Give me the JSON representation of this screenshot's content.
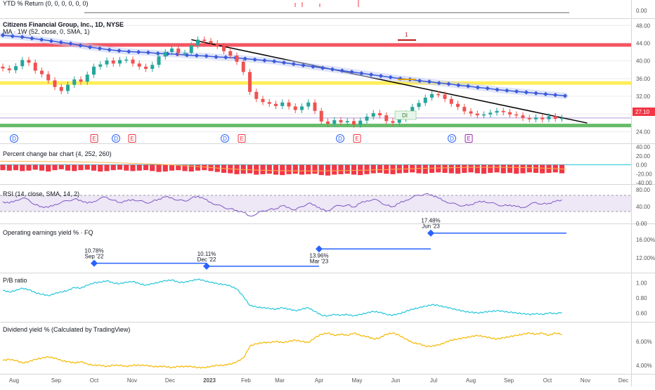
{
  "colors": {
    "candle_up": "#26a69a",
    "candle_down": "#ef5350",
    "ma": "#3b5bdb",
    "ma_glow": "#c5cdf6",
    "trendline": "#000000",
    "band_red": "#f23645",
    "band_yellow": "#ffeb3b",
    "band_green": "#4caf50",
    "pct_bar": "#f23645",
    "pct_line": "#ffb74d",
    "rsi": "#7e57c2",
    "earnings": "#2962ff",
    "pb": "#26c6da",
    "div": "#f5b800",
    "event_dividend": "#2962ff",
    "event_earnings": "#f23645",
    "event_earnings_future": "#9c27b0",
    "axis_text": "#555555",
    "grid": "#ececec",
    "separator": "#d6d6d6",
    "last_price_badge": "#f23645"
  },
  "top_panel": {
    "title": "YTD % Return (0, 0, 0, 0, 0, 0)",
    "axis_label": "0.00"
  },
  "main_panel": {
    "title": "Citizens Financial Group, Inc., 1D, NYSE",
    "indicator": "MA · 1W (52, close, 0, SMA, 1)",
    "price_axis": [
      "48.00",
      "44.00",
      "40.00",
      "36.00",
      "32.00",
      "28.00",
      "24.00"
    ],
    "last_price": "27.10",
    "band_marker_label": "1",
    "price_bubble": "DI",
    "events": [
      {
        "type": "dividend",
        "label": "D"
      },
      {
        "type": "earnings",
        "label": "E"
      },
      {
        "type": "dividend",
        "label": "D"
      },
      {
        "type": "earnings",
        "label": "E"
      },
      {
        "type": "dividend",
        "label": "D"
      },
      {
        "type": "earnings",
        "label": "E"
      },
      {
        "type": "dividend",
        "label": "D"
      },
      {
        "type": "earnings",
        "label": "E"
      },
      {
        "type": "dividend",
        "label": "D"
      },
      {
        "type": "earnings_future",
        "label": "E"
      }
    ]
  },
  "pct_panel": {
    "title": "Percent change bar chart (4, 252, 260)",
    "axis": [
      "40.00",
      "20.00",
      "0.00",
      "-20.00",
      "-40.00"
    ]
  },
  "rsi_panel": {
    "title": "RSI (14, close, SMA, 14, 2)",
    "axis": [
      "80.00",
      "40.00",
      "0.00"
    ]
  },
  "earnings_panel": {
    "title": "Operating earnings yield % · FQ",
    "axis": [
      "16.00%",
      "12.00%"
    ],
    "labels": [
      {
        "value": "10.78%",
        "period": "Sep '22"
      },
      {
        "value": "10.11%",
        "period": "Dec '22"
      },
      {
        "value": "13.96%",
        "period": "Mar '23"
      },
      {
        "value": "17.48%",
        "period": "Jun '23"
      }
    ]
  },
  "pb_panel": {
    "title": "P/B ratio",
    "axis": [
      "1.00",
      "0.80",
      "0.60"
    ]
  },
  "div_panel": {
    "title": "Dividend yield % (Calculated by TradingView)",
    "axis": [
      "6.00%",
      "4.00%"
    ]
  },
  "time_axis": [
    "Aug",
    "Sep",
    "Oct",
    "Nov",
    "Dec",
    "2023",
    "Feb",
    "Mar",
    "Apr",
    "May",
    "Jun",
    "Jul",
    "Aug",
    "Sep",
    "Oct",
    "Nov",
    "Dec"
  ],
  "chart_data": [
    {
      "type": "line",
      "title": "Citizens Financial Group, Inc., 1D, NYSE",
      "series": [
        {
          "name": "Citizens Financial Group, Inc., 1D, NYSE",
          "values": [
            38.3,
            37.9,
            38.8,
            40.2,
            39.6,
            37.8,
            37.0,
            35.6,
            34.1,
            33.2,
            34.6,
            35.8,
            35.3,
            36.9,
            38.7,
            39.2,
            40.1,
            39.4,
            40.2,
            40.3,
            39.4,
            38.7,
            38.2,
            39.1,
            41.0,
            42.0,
            42.8,
            41.8,
            41.8,
            43.5,
            44.8,
            44.5,
            44.0,
            43.4,
            42.2,
            41.2,
            39.8,
            37.5,
            33.0,
            31.4,
            30.7,
            30.3,
            29.8,
            30.6,
            29.7,
            28.9,
            29.7,
            30.6,
            28.7,
            26.3,
            25.8,
            26.6,
            26.1,
            26.4,
            25.6,
            26.5,
            27.4,
            28.2,
            27.7,
            26.4,
            26.0,
            26.9,
            28.1,
            29.6,
            30.5,
            31.7,
            32.5,
            32.4,
            31.4,
            30.3,
            29.6,
            28.6,
            28.1,
            27.7,
            27.9,
            28.3,
            28.7,
            28.4,
            27.9,
            27.7,
            27.1,
            26.8,
            27.2,
            26.8,
            27.5,
            26.9,
            27.1
          ]
        },
        {
          "name": "MA · 1W (52, close, 0, SMA, 1)",
          "values": [
            45.8,
            45.6,
            45.4,
            45.1,
            44.8,
            44.5,
            44.2,
            43.9,
            43.5,
            43.1,
            42.8,
            42.5,
            42.3,
            42.1,
            42.0,
            41.9,
            41.7,
            41.6,
            41.5,
            41.3,
            41.2,
            41.1,
            40.9,
            40.8,
            40.7,
            40.5,
            40.3,
            40.1,
            39.9,
            39.6,
            39.3,
            39.0,
            38.7,
            38.4,
            38.1,
            37.8,
            37.5,
            37.2,
            36.9,
            36.6,
            36.3,
            36.0,
            35.8,
            35.5,
            35.3,
            35.0,
            34.8,
            34.5,
            34.3,
            34.0,
            33.8,
            33.5,
            33.3,
            33.1,
            32.9,
            32.7,
            32.5,
            32.3,
            32.1
          ]
        }
      ],
      "horizontal_levels": [
        {
          "color": "red",
          "value": 43.6
        },
        {
          "color": "yellow",
          "value": 35.0
        },
        {
          "color": "green",
          "value": 25.4
        }
      ],
      "trendline": {
        "from": [
          29,
          44.8
        ],
        "to": [
          86,
          25.8
        ]
      },
      "ylim": [
        22,
        49
      ]
    },
    {
      "type": "bar",
      "title": "Percent change bar chart (4, 252, 260)",
      "values": [
        -12,
        -13,
        -12,
        -14,
        -13,
        -11,
        -13,
        -15,
        -12,
        -10,
        -13,
        -14,
        -12,
        -11,
        -13,
        -15,
        -14,
        -12,
        -11,
        -13,
        -14,
        -13,
        -12,
        -14,
        -16,
        -15,
        -13,
        -12,
        -14,
        -15,
        -13,
        -12,
        -14,
        -16,
        -18,
        -19,
        -21,
        -20,
        -19,
        -22,
        -21,
        -20,
        -22,
        -23,
        -21,
        -20,
        -22,
        -21,
        -20,
        -23,
        -24,
        -22,
        -21,
        -20,
        -22,
        -23,
        -21,
        -19,
        -18,
        -20,
        -21,
        -19,
        -18,
        -17,
        -19,
        -20,
        -18,
        -17,
        -18,
        -19,
        -20,
        -18,
        -17,
        -19,
        -20,
        -18,
        -17,
        -19,
        -18,
        -20,
        -19,
        -17,
        -18,
        -19,
        -18,
        -17,
        -19
      ],
      "ylim": [
        -40,
        40
      ]
    },
    {
      "type": "line",
      "title": "RSI (14, close, SMA, 14, 2)",
      "series": [
        {
          "name": "RSI (14, close, SMA, 14, 2)",
          "values": [
            52,
            48,
            55,
            60,
            56,
            44,
            40,
            38,
            45,
            50,
            54,
            58,
            55,
            48,
            52,
            60,
            62,
            55,
            50,
            53,
            57,
            54,
            49,
            52,
            58,
            63,
            61,
            55,
            53,
            60,
            65,
            58,
            50,
            44,
            38,
            35,
            31,
            26,
            18,
            22,
            30,
            33,
            35,
            42,
            38,
            32,
            40,
            48,
            44,
            33,
            30,
            40,
            42,
            44,
            39,
            48,
            54,
            57,
            52,
            43,
            40,
            48,
            55,
            62,
            67,
            70,
            68,
            60,
            53,
            48,
            44,
            42,
            45,
            50,
            53,
            49,
            45,
            42,
            44,
            40,
            38,
            44,
            50,
            46,
            48,
            52,
            56
          ]
        }
      ],
      "bands": [
        70,
        30
      ],
      "ylim": [
        0,
        80
      ]
    },
    {
      "type": "line",
      "title": "Operating earnings yield % · FQ",
      "series": [
        {
          "name": "Operating earnings yield % · FQ",
          "values": [
            10.78,
            10.11,
            13.96,
            17.48
          ]
        }
      ],
      "categories": [
        "Sep '22",
        "Dec '22",
        "Mar '23",
        "Jun '23"
      ],
      "ylim": [
        9,
        19
      ]
    },
    {
      "type": "line",
      "title": "P/B ratio",
      "series": [
        {
          "name": "P/B ratio",
          "values": [
            0.9,
            0.88,
            0.9,
            0.93,
            0.91,
            0.87,
            0.85,
            0.83,
            0.86,
            0.88,
            0.9,
            0.94,
            0.93,
            0.97,
            1.0,
            1.01,
            1.03,
            1.0,
            0.99,
            1.01,
            1.02,
            0.99,
            0.97,
            0.99,
            1.01,
            1.03,
            1.04,
            1.01,
            1.01,
            1.03,
            1.05,
            1.03,
            1.01,
            0.99,
            0.98,
            0.96,
            0.92,
            0.82,
            0.7,
            0.68,
            0.67,
            0.66,
            0.65,
            0.67,
            0.65,
            0.63,
            0.65,
            0.67,
            0.62,
            0.57,
            0.56,
            0.58,
            0.57,
            0.58,
            0.56,
            0.58,
            0.6,
            0.62,
            0.61,
            0.58,
            0.57,
            0.59,
            0.62,
            0.65,
            0.67,
            0.69,
            0.71,
            0.7,
            0.68,
            0.66,
            0.64,
            0.62,
            0.61,
            0.6,
            0.61,
            0.62,
            0.63,
            0.62,
            0.61,
            0.6,
            0.59,
            0.58,
            0.59,
            0.58,
            0.6,
            0.59,
            0.61
          ]
        }
      ],
      "ylim": [
        0.5,
        1.1
      ]
    },
    {
      "type": "line",
      "title": "Dividend yield % (Calculated by TradingView)",
      "series": [
        {
          "name": "Dividend yield % (Calculated by TradingView)",
          "values": [
            4.4,
            4.5,
            4.4,
            4.2,
            4.3,
            4.5,
            4.6,
            4.7,
            4.6,
            4.4,
            4.3,
            4.2,
            4.3,
            4.1,
            4.0,
            4.0,
            3.9,
            4.0,
            4.0,
            3.9,
            4.0,
            4.0,
            4.0,
            3.9,
            3.9,
            3.9,
            3.8,
            3.9,
            3.9,
            3.9,
            3.8,
            3.8,
            3.9,
            4.0,
            4.0,
            4.1,
            4.3,
            4.6,
            5.6,
            5.8,
            5.9,
            5.9,
            6.0,
            5.9,
            6.0,
            6.1,
            6.0,
            5.9,
            6.3,
            6.6,
            6.7,
            6.5,
            6.6,
            6.5,
            6.7,
            6.5,
            6.4,
            6.2,
            6.3,
            6.6,
            6.7,
            6.5,
            6.2,
            5.9,
            5.8,
            5.6,
            5.6,
            5.7,
            5.9,
            6.1,
            6.2,
            6.3,
            6.4,
            6.5,
            6.4,
            6.3,
            6.2,
            6.3,
            6.4,
            6.5,
            6.6,
            6.7,
            6.6,
            6.7,
            6.5,
            6.7,
            6.6
          ]
        }
      ],
      "ylim": [
        3.4,
        7.4
      ]
    }
  ]
}
